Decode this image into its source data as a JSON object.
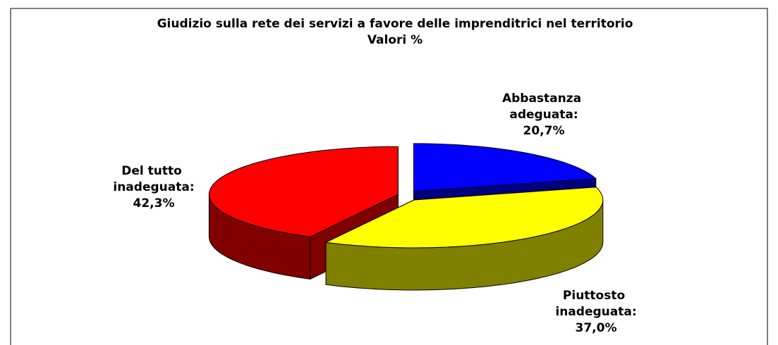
{
  "chart_data": {
    "type": "pie3d",
    "title": "Giudizio sulla rete dei servizi a favore delle imprenditrici nel territorio",
    "subtitle": "Valori %",
    "categories": [
      "Abbastanza adeguata:",
      "Piuttosto inadeguata:",
      "Del tutto inadeguata:"
    ],
    "values": [
      20.7,
      37.0,
      42.3
    ],
    "value_labels": [
      "20,7%",
      "37,0%",
      "42,3%"
    ],
    "colors": [
      "#0000ff",
      "#ffff00",
      "#ff0000"
    ],
    "side_colors": [
      "#000080",
      "#808000",
      "#800000"
    ]
  }
}
